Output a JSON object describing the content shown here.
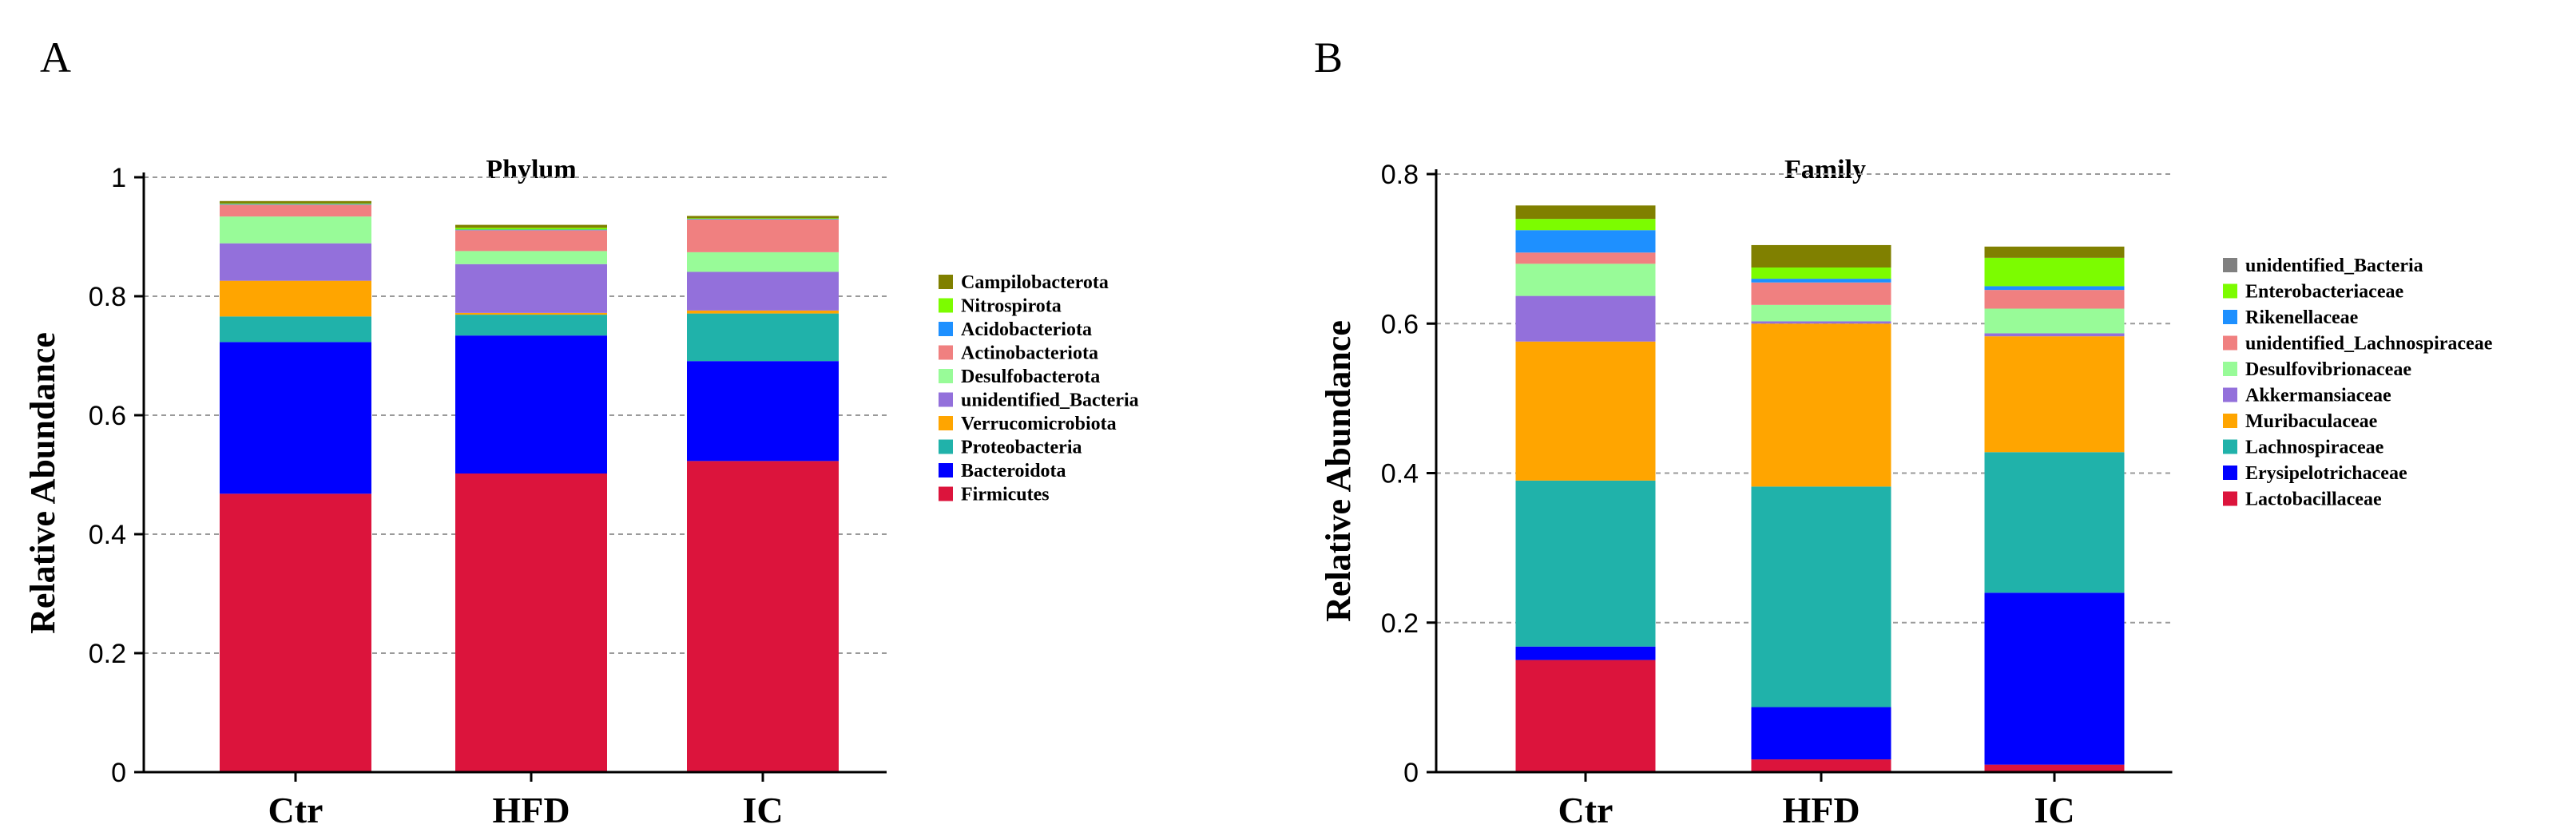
{
  "panels": [
    {
      "letter": "A",
      "chart_data": {
        "type": "bar",
        "stacked": true,
        "title": "Phylum",
        "xlabel": "",
        "ylabel": "Relative Abundance",
        "ylim": [
          0,
          1
        ],
        "yticks": [
          0,
          0.2,
          0.4,
          0.6,
          0.8,
          1
        ],
        "ytick_labels": [
          "0",
          "0.2",
          "0.4",
          "0.6",
          "0.8",
          "1"
        ],
        "grid": "horizontal dashed",
        "legend_position": "right",
        "categories": [
          "Ctr",
          "HFD",
          "IC"
        ],
        "series": [
          {
            "name": "Firmicutes",
            "color": "#DC143C",
            "values": [
              0.468,
              0.502,
              0.523
            ]
          },
          {
            "name": "Bacteroidota",
            "color": "#0000FF",
            "values": [
              0.255,
              0.232,
              0.168
            ]
          },
          {
            "name": "Proteobacteria",
            "color": "#20B2AA",
            "values": [
              0.043,
              0.035,
              0.08
            ]
          },
          {
            "name": "Verrucomicrobiota",
            "color": "#FFA500",
            "values": [
              0.06,
              0.003,
              0.005
            ]
          },
          {
            "name": "unidentified_Bacteria",
            "color": "#9370DB",
            "values": [
              0.063,
              0.082,
              0.065
            ]
          },
          {
            "name": "Desulfobacterota",
            "color": "#98FB98",
            "values": [
              0.045,
              0.022,
              0.033
            ]
          },
          {
            "name": "Actinobacteriota",
            "color": "#F08080",
            "values": [
              0.02,
              0.035,
              0.055
            ]
          },
          {
            "name": "Acidobacteriota",
            "color": "#1E90FF",
            "values": [
              0.001,
              0.001,
              0.001
            ]
          },
          {
            "name": "Nitrospirota",
            "color": "#7CFC00",
            "values": [
              0.001,
              0.003,
              0.001
            ]
          },
          {
            "name": "Campilobacterota",
            "color": "#808000",
            "values": [
              0.004,
              0.005,
              0.004
            ]
          }
        ]
      }
    },
    {
      "letter": "B",
      "chart_data": {
        "type": "bar",
        "stacked": true,
        "title": "Family",
        "xlabel": "",
        "ylabel": "Relative Abundance",
        "ylim": [
          0,
          0.8
        ],
        "yticks": [
          0,
          0.2,
          0.4,
          0.6,
          0.8
        ],
        "ytick_labels": [
          "0",
          "0.2",
          "0.4",
          "0.6",
          "0.8"
        ],
        "grid": "horizontal dashed",
        "legend_position": "right",
        "categories": [
          "Ctr",
          "HFD",
          "IC"
        ],
        "series": [
          {
            "name": "Lactobacillaceae",
            "color": "#DC143C",
            "values": [
              0.15,
              0.017,
              0.01
            ]
          },
          {
            "name": "Erysipelotrichaceae",
            "color": "#0000FF",
            "values": [
              0.018,
              0.07,
              0.23
            ]
          },
          {
            "name": "Lachnospiraceae",
            "color": "#20B2AA",
            "values": [
              0.222,
              0.295,
              0.188
            ]
          },
          {
            "name": "Muribaculaceae",
            "color": "#FFA500",
            "values": [
              0.186,
              0.218,
              0.155
            ]
          },
          {
            "name": "Akkermansiaceae",
            "color": "#9370DB",
            "values": [
              0.061,
              0.003,
              0.004
            ]
          },
          {
            "name": "Desulfovibrionaceae",
            "color": "#98FB98",
            "values": [
              0.043,
              0.022,
              0.033
            ]
          },
          {
            "name": "unidentified_Lachnospiraceae",
            "color": "#F08080",
            "values": [
              0.015,
              0.03,
              0.025
            ]
          },
          {
            "name": "Rikenellaceae",
            "color": "#1E90FF",
            "values": [
              0.03,
              0.005,
              0.005
            ]
          },
          {
            "name": "Enterobacteriaceae",
            "color": "#7CFC00",
            "values": [
              0.015,
              0.015,
              0.038
            ]
          },
          {
            "name": "unidentified_Bacteria",
            "color": "#808000",
            "values": [
              0.018,
              0.03,
              0.015
            ]
          }
        ],
        "legend_label_override": {
          "unidentified_Bacteria": "unidentified_Bacteria"
        },
        "legend_swatch_override": {
          "unidentified_Bacteria": "#808080"
        }
      }
    }
  ]
}
